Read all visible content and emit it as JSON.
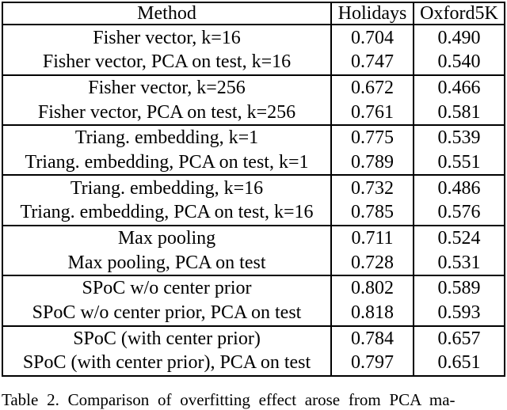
{
  "colors": {
    "background": "#ffffff",
    "text": "#000000",
    "border": "#000000"
  },
  "table": {
    "header": [
      "Method",
      "Holidays",
      "Oxford5K"
    ],
    "groups": [
      {
        "rows": [
          {
            "method": "Fisher vector, k=16",
            "holidays": "0.704",
            "oxford5k": "0.490"
          },
          {
            "method": "Fisher vector, PCA on test, k=16",
            "holidays": "0.747",
            "oxford5k": "0.540"
          }
        ]
      },
      {
        "rows": [
          {
            "method": "Fisher vector, k=256",
            "holidays": "0.672",
            "oxford5k": "0.466"
          },
          {
            "method": "Fisher vector, PCA on test, k=256",
            "holidays": "0.761",
            "oxford5k": "0.581"
          }
        ]
      },
      {
        "rows": [
          {
            "method": "Triang. embedding, k=1",
            "holidays": "0.775",
            "oxford5k": "0.539"
          },
          {
            "method": "Triang. embedding, PCA on test, k=1",
            "holidays": "0.789",
            "oxford5k": "0.551"
          }
        ]
      },
      {
        "rows": [
          {
            "method": "Triang. embedding, k=16",
            "holidays": "0.732",
            "oxford5k": "0.486"
          },
          {
            "method": "Triang. embedding, PCA on test, k=16",
            "holidays": "0.785",
            "oxford5k": "0.576"
          }
        ]
      },
      {
        "rows": [
          {
            "method": "Max pooling",
            "holidays": "0.711",
            "oxford5k": "0.524"
          },
          {
            "method": "Max pooling, PCA on test",
            "holidays": "0.728",
            "oxford5k": "0.531"
          }
        ]
      },
      {
        "rows": [
          {
            "method": "SPoC w/o center prior",
            "holidays": "0.802",
            "oxford5k": "0.589"
          },
          {
            "method": "SPoC w/o center prior, PCA on test",
            "holidays": "0.818",
            "oxford5k": "0.593"
          }
        ]
      },
      {
        "rows": [
          {
            "method": "SPoC (with center prior)",
            "holidays": "0.784",
            "oxford5k": "0.657"
          },
          {
            "method": "SPoC (with center prior), PCA on test",
            "holidays": "0.797",
            "oxford5k": "0.651"
          }
        ]
      }
    ]
  },
  "caption": {
    "text": "Table 2. Comparison of overfitting effect arose from PCA ma-"
  }
}
